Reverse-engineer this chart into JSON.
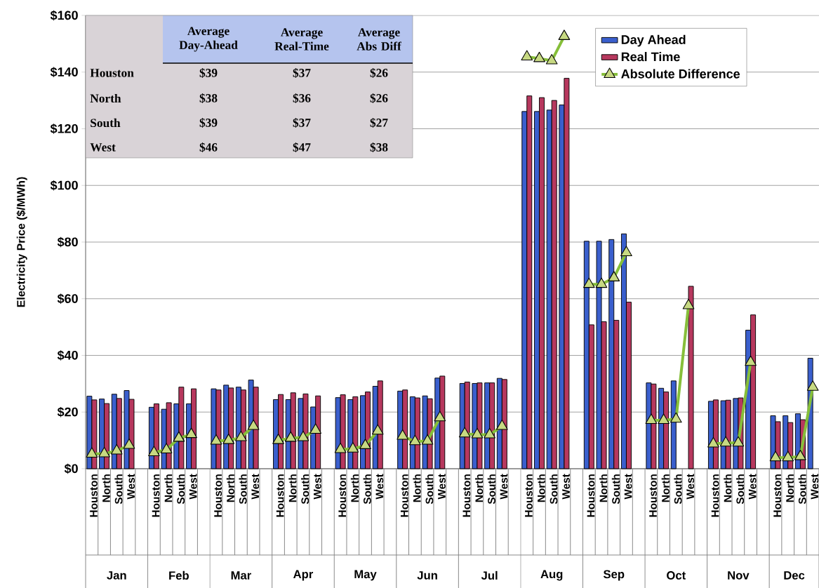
{
  "chart_data": [
    {
      "type": "bar",
      "ylabel": "Electricity Price ($/MWh)",
      "categories": [
        "Houston",
        "North",
        "South",
        "West",
        null,
        "Houston",
        "North",
        "South",
        "West",
        null,
        "Houston",
        "North",
        "South",
        "West",
        null,
        "Houston",
        "North",
        "South",
        "West",
        null,
        "Houston",
        "North",
        "South",
        "West",
        null,
        "Houston",
        "North",
        "South",
        "West",
        null,
        "Houston",
        "North",
        "South",
        "West",
        null,
        "Houston",
        "North",
        "South",
        "West",
        null,
        "Houston",
        "North",
        "South",
        "West",
        null,
        "Houston",
        "North",
        "South",
        "West",
        null,
        "Houston",
        "North",
        "South",
        "West",
        null,
        "Houston",
        "North",
        "South",
        "West"
      ],
      "series": [
        {
          "name": "Day Ahead",
          "type": "bar",
          "color": "#3a5fcd",
          "values": [
            25.6,
            24.6,
            26.3,
            27.6,
            null,
            21.7,
            21,
            22.9,
            22.9,
            null,
            28.2,
            29.5,
            28.8,
            31.3,
            null,
            24.4,
            24.4,
            24.8,
            21.8,
            null,
            25.1,
            24.4,
            25.8,
            29.1,
            null,
            27.4,
            25.4,
            25.7,
            32,
            null,
            30.1,
            30.1,
            30.3,
            31.9,
            null,
            126.1,
            126.1,
            126.6,
            128.4,
            null,
            80.3,
            80.3,
            80.9,
            82.9,
            null,
            30.3,
            28.4,
            31,
            null,
            null,
            23.8,
            24,
            24.8,
            48.9,
            null,
            18.7,
            18.7,
            19.4,
            39
          ]
        },
        {
          "name": "Real Time",
          "type": "bar",
          "color": "#b7385e",
          "values": [
            24.3,
            23,
            24.8,
            24.5,
            null,
            22.9,
            23.3,
            28.8,
            28.2,
            null,
            27.8,
            28.5,
            27.8,
            28.8,
            null,
            26.2,
            26.8,
            26.4,
            25.7,
            null,
            26.1,
            25.4,
            27.1,
            31,
            null,
            27.8,
            25,
            24.7,
            32.7,
            null,
            30.6,
            30.3,
            30.3,
            31.5,
            null,
            131.6,
            131,
            130,
            137.8,
            null,
            50.8,
            51.9,
            52.4,
            58.8,
            null,
            29.9,
            27.1,
            null,
            64.4,
            null,
            24.3,
            24.2,
            25,
            54.3,
            null,
            16.6,
            16.3,
            17.3,
            null
          ]
        },
        {
          "name": "Absolute Difference",
          "type": "line",
          "color": "#86bf3a",
          "marker": "triangle",
          "values": [
            5.2,
            5.3,
            6.3,
            8.3,
            null,
            5.7,
            6.7,
            10.8,
            12.1,
            null,
            9.8,
            10,
            11,
            15,
            null,
            10,
            10.8,
            11,
            13.6,
            null,
            6.8,
            7,
            8.2,
            13.3,
            null,
            11.5,
            9.6,
            9.8,
            18,
            null,
            12.3,
            12,
            12,
            15,
            null,
            145.4,
            144.8,
            144,
            152.6,
            null,
            65.1,
            65.1,
            67.4,
            76.3,
            null,
            17.1,
            17.1,
            17.5,
            57.6,
            null,
            8.8,
            9.1,
            9.1,
            37.6,
            null,
            3.9,
            3.9,
            4.3,
            28.8
          ]
        }
      ],
      "ylim": [
        0,
        160
      ],
      "yticks": [
        {
          "value": 0,
          "label": "$0"
        },
        {
          "value": 20,
          "label": "$20"
        },
        {
          "value": 40,
          "label": "$40"
        },
        {
          "value": 60,
          "label": "$60"
        },
        {
          "value": 80,
          "label": "$80"
        },
        {
          "value": 100,
          "label": "$100"
        },
        {
          "value": 120,
          "label": "$120"
        },
        {
          "value": 140,
          "label": "$140"
        },
        {
          "value": 160,
          "label": "$160"
        }
      ],
      "grid": "y",
      "legend": "top right",
      "annotations": [
        "Jan",
        "Feb",
        "Mar",
        "Apr",
        "May",
        "Jun",
        "Jul",
        "Aug",
        "Sep",
        "Oct",
        "Nov",
        "Dec"
      ]
    },
    {
      "type": "other",
      "annotations": [
        "Average Day-Ahead",
        "Average Real-Time",
        "Average Abs Diff",
        "Houston",
        "$39",
        "$37",
        "$26",
        "North",
        "$38",
        "$36",
        "$26",
        "South",
        "$39",
        "$37",
        "$27",
        "West",
        "$46",
        "$47",
        "$38"
      ]
    }
  ]
}
